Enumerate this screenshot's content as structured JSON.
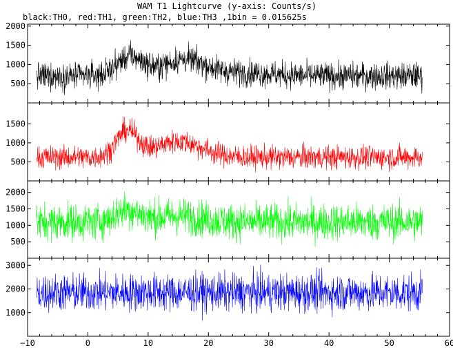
{
  "title": "WAM T1 Lightcurve (y-axis: Counts/s)",
  "subtitle": "black:TH0, red:TH1, green:TH2, blue:TH3 ,1bin = 0.015625s",
  "chart_data": [
    {
      "type": "line",
      "name": "TH0",
      "color": "#000000",
      "ylim": [
        0,
        2050
      ],
      "yticks": [
        "500",
        "1000",
        "1500",
        "2000"
      ],
      "baseline": 700,
      "noise": 175,
      "bumps": [
        {
          "center": 7,
          "width": 2.2,
          "amp": 500
        },
        {
          "center": 16,
          "width": 3.5,
          "amp": 420
        },
        {
          "center": 26,
          "width": 5,
          "amp": 80
        }
      ]
    },
    {
      "type": "line",
      "name": "TH1",
      "color": "#ff0000",
      "ylim": [
        0,
        2050
      ],
      "yticks": [
        "500",
        "1000",
        "1500"
      ],
      "baseline": 620,
      "noise": 155,
      "bumps": [
        {
          "center": 6.5,
          "width": 1.8,
          "amp": 680
        },
        {
          "center": 15,
          "width": 3.8,
          "amp": 420
        }
      ]
    },
    {
      "type": "line",
      "name": "TH2",
      "color": "#00ff00",
      "ylim": [
        0,
        2350
      ],
      "yticks": [
        "500",
        "1000",
        "1500",
        "2000"
      ],
      "baseline": 1100,
      "noise": 280,
      "bumps": [
        {
          "center": 6.5,
          "width": 2,
          "amp": 350
        },
        {
          "center": 15,
          "width": 4,
          "amp": 180
        }
      ]
    },
    {
      "type": "line",
      "name": "TH3",
      "color": "#0000ff",
      "ylim": [
        0,
        3300
      ],
      "yticks": [
        "1000",
        "2000",
        "3000"
      ],
      "baseline": 1850,
      "noise": 400,
      "bumps": []
    }
  ],
  "x_axis": {
    "xlim": [
      -10,
      60
    ],
    "data_range": [
      -8.5,
      55.5
    ],
    "ticks": [
      "−10",
      "0",
      "10",
      "20",
      "30",
      "40",
      "50",
      "60"
    ],
    "tick_values": [
      -10,
      0,
      10,
      20,
      30,
      40,
      50,
      60
    ]
  }
}
